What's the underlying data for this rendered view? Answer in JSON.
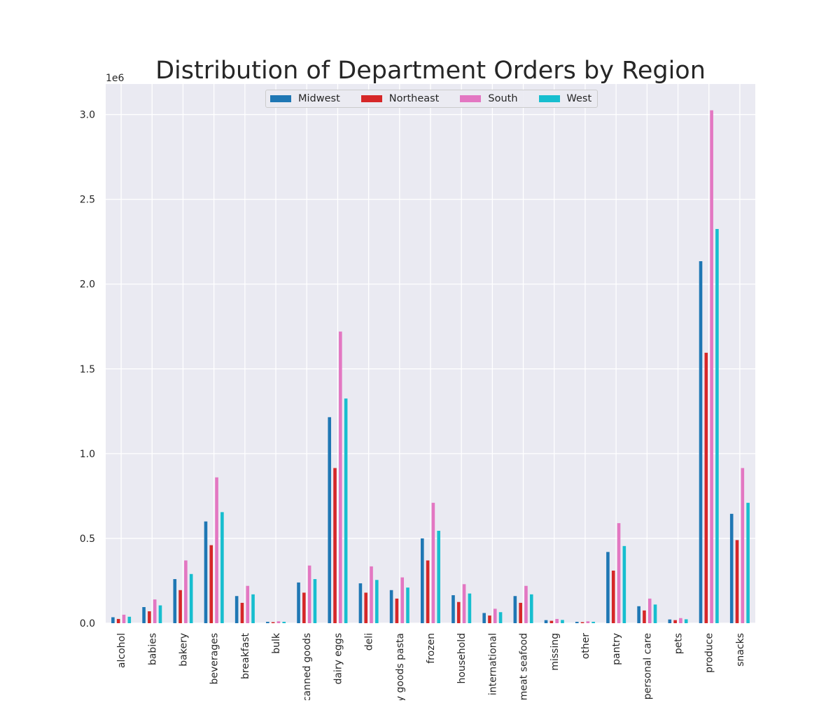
{
  "chart_data": {
    "type": "bar",
    "title": "Distribution of Department Orders by Region",
    "xlabel": "",
    "ylabel": "",
    "y_multiplier_label": "1e6",
    "ylim": [
      0,
      3.18
    ],
    "yticks": [
      0.0,
      0.5,
      1.0,
      1.5,
      2.0,
      2.5,
      3.0
    ],
    "ytick_labels": [
      "0.0",
      "0.5",
      "1.0",
      "1.5",
      "2.0",
      "2.5",
      "3.0"
    ],
    "grid": true,
    "legend_position": "top-center",
    "categories": [
      "alcohol",
      "babies",
      "bakery",
      "beverages",
      "breakfast",
      "bulk",
      "canned goods",
      "dairy eggs",
      "deli",
      "dry goods pasta",
      "frozen",
      "household",
      "international",
      "meat seafood",
      "missing",
      "other",
      "pantry",
      "personal care",
      "pets",
      "produce",
      "snacks"
    ],
    "series": [
      {
        "name": "Midwest",
        "color": "#1f77b4",
        "values": [
          0.035,
          0.095,
          0.26,
          0.6,
          0.16,
          0.008,
          0.24,
          1.215,
          0.235,
          0.195,
          0.5,
          0.165,
          0.06,
          0.16,
          0.018,
          0.008,
          0.42,
          0.1,
          0.022,
          2.135,
          0.645
        ]
      },
      {
        "name": "Northeast",
        "color": "#d62728",
        "values": [
          0.025,
          0.07,
          0.195,
          0.46,
          0.12,
          0.006,
          0.18,
          0.915,
          0.18,
          0.145,
          0.37,
          0.125,
          0.045,
          0.12,
          0.014,
          0.006,
          0.31,
          0.075,
          0.018,
          1.595,
          0.49
        ]
      },
      {
        "name": "South",
        "color": "#e377c2",
        "values": [
          0.05,
          0.14,
          0.37,
          0.86,
          0.22,
          0.011,
          0.34,
          1.72,
          0.335,
          0.27,
          0.71,
          0.23,
          0.085,
          0.22,
          0.025,
          0.011,
          0.59,
          0.145,
          0.03,
          3.025,
          0.915
        ]
      },
      {
        "name": "West",
        "color": "#17becf",
        "values": [
          0.038,
          0.105,
          0.29,
          0.655,
          0.17,
          0.008,
          0.26,
          1.325,
          0.255,
          0.21,
          0.545,
          0.175,
          0.065,
          0.17,
          0.019,
          0.008,
          0.455,
          0.11,
          0.023,
          2.325,
          0.71
        ]
      }
    ]
  }
}
